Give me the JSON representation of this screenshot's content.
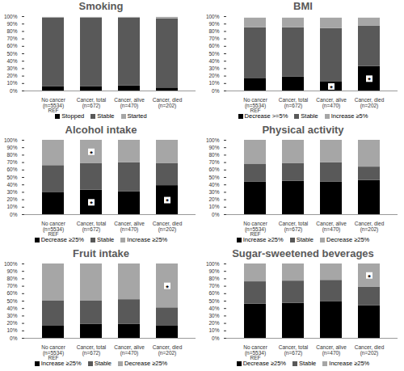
{
  "chart_data": [
    {
      "type": "bar",
      "stacked": true,
      "title": "Smoking",
      "legend": "bottom",
      "categories": [
        "No cancer (n=5534)\nREF",
        "Cancer, total (n=672)",
        "Cancer, alive (n=470)",
        "Cancer, died (n=202)"
      ],
      "series": [
        {
          "name": "Stopped",
          "color": "#000000",
          "values": [
            6,
            6,
            7,
            4
          ]
        },
        {
          "name": "Stable",
          "color": "#595959",
          "values": [
            92,
            92,
            91,
            93
          ]
        },
        {
          "name": "Started",
          "color": "#a6a6a6",
          "values": [
            1,
            1,
            1,
            2
          ]
        }
      ],
      "ylim": [
        0,
        100
      ],
      "yticks": [
        {
          "value": 0,
          "label": "0%"
        },
        {
          "value": 10,
          "label": "10%"
        },
        {
          "value": 20,
          "label": "20%"
        },
        {
          "value": 30,
          "label": "30%"
        },
        {
          "value": 40,
          "label": "40%"
        },
        {
          "value": 50,
          "label": "50%"
        },
        {
          "value": 60,
          "label": "60%"
        },
        {
          "value": 70,
          "label": "70%"
        },
        {
          "value": 80,
          "label": "80%"
        },
        {
          "value": 90,
          "label": "90%"
        },
        {
          "value": 100,
          "label": "100%"
        }
      ],
      "annotations": []
    },
    {
      "type": "bar",
      "stacked": true,
      "title": "BMI",
      "legend": "bottom",
      "categories": [
        "No cancer (n=5534)\nREF",
        "Cancer, total (n=672)",
        "Cancer, alive (n=470)",
        "Cancer, died (n=202)"
      ],
      "series": [
        {
          "name": "Decrease >=5%",
          "color": "#000000",
          "values": [
            17,
            19,
            12,
            33
          ]
        },
        {
          "name": "Stable",
          "color": "#595959",
          "values": [
            68,
            66,
            72,
            54
          ]
        },
        {
          "name": "Increase ≥5%",
          "color": "#a6a6a6",
          "values": [
            13,
            13,
            14,
            11
          ]
        }
      ],
      "ylim": [
        0,
        100
      ],
      "yticks": [
        {
          "value": 0,
          "label": "0%"
        },
        {
          "value": 10,
          "label": "10%"
        },
        {
          "value": 20,
          "label": "20%"
        },
        {
          "value": 30,
          "label": "30%"
        },
        {
          "value": 40,
          "label": "40%"
        },
        {
          "value": 50,
          "label": "50%"
        },
        {
          "value": 60,
          "label": "60%"
        },
        {
          "value": 70,
          "label": "70%"
        },
        {
          "value": 80,
          "label": "80%"
        },
        {
          "value": 90,
          "label": "90%"
        },
        {
          "value": 100,
          "label": "100%"
        }
      ],
      "annotations": [
        {
          "category": "Cancer, alive (n=470)",
          "series": "Decrease >=5%",
          "text": "*"
        },
        {
          "category": "Cancer, died (n=202)",
          "series": "Decrease >=5%",
          "text": "*"
        }
      ]
    },
    {
      "type": "bar",
      "stacked": true,
      "title": "Alcohol intake",
      "legend": "bottom",
      "categories": [
        "No cancer (n=5534)\nREF",
        "Cancer, total (n=672)",
        "Cancer, alive (n=470)",
        "Cancer, died (n=202)"
      ],
      "series": [
        {
          "name": "Decrease ≥25%",
          "color": "#000000",
          "values": [
            30,
            33,
            31,
            39
          ]
        },
        {
          "name": "Stable",
          "color": "#595959",
          "values": [
            36,
            36,
            39,
            30
          ]
        },
        {
          "name": "Increase ≥25%",
          "color": "#a6a6a6",
          "values": [
            34,
            31,
            30,
            31
          ]
        }
      ],
      "ylim": [
        0,
        100
      ],
      "yticks": [
        {
          "value": 0,
          "label": "0%"
        },
        {
          "value": 10,
          "label": "10%"
        },
        {
          "value": 20,
          "label": "20%"
        },
        {
          "value": 30,
          "label": "30%"
        },
        {
          "value": 40,
          "label": "40%"
        },
        {
          "value": 50,
          "label": "50%"
        },
        {
          "value": 60,
          "label": "60%"
        },
        {
          "value": 70,
          "label": "70%"
        },
        {
          "value": 80,
          "label": "80%"
        },
        {
          "value": 90,
          "label": "90%"
        },
        {
          "value": 100,
          "label": "100%"
        }
      ],
      "annotations": [
        {
          "category": "Cancer, total (n=672)",
          "series": "Decrease ≥25%",
          "text": "*"
        },
        {
          "category": "Cancer, total (n=672)",
          "series": "Increase ≥25%",
          "text": "*"
        },
        {
          "category": "Cancer, died (n=202)",
          "series": "Decrease ≥25%",
          "text": "*"
        }
      ]
    },
    {
      "type": "bar",
      "stacked": true,
      "title": "Physical activity",
      "legend": "bottom",
      "categories": [
        "No cancer (n=5534)\nREF",
        "Cancer, total (n=672)",
        "Cancer, alive (n=470)",
        "Cancer, died (n=202)"
      ],
      "series": [
        {
          "name": "Increase ≥25%",
          "color": "#000000",
          "values": [
            44,
            45,
            44,
            46
          ]
        },
        {
          "name": "Stable",
          "color": "#595959",
          "values": [
            24,
            24,
            26,
            18
          ]
        },
        {
          "name": "Decrease ≥25%",
          "color": "#a6a6a6",
          "values": [
            32,
            31,
            30,
            36
          ]
        }
      ],
      "ylim": [
        0,
        100
      ],
      "yticks": [
        {
          "value": 0,
          "label": "0%"
        },
        {
          "value": 10,
          "label": "10%"
        },
        {
          "value": 20,
          "label": "20%"
        },
        {
          "value": 30,
          "label": "30%"
        },
        {
          "value": 40,
          "label": "40%"
        },
        {
          "value": 50,
          "label": "50%"
        },
        {
          "value": 60,
          "label": "60%"
        },
        {
          "value": 70,
          "label": "70%"
        },
        {
          "value": 80,
          "label": "80%"
        },
        {
          "value": 90,
          "label": "90%"
        },
        {
          "value": 100,
          "label": "100%"
        }
      ],
      "annotations": []
    },
    {
      "type": "bar",
      "stacked": true,
      "title": "Fruit intake",
      "legend": "bottom",
      "categories": [
        "No cancer (n=5534)\nREF",
        "Cancer, total (n=672)",
        "Cancer, alive (n=470)",
        "Cancer, died (n=202)"
      ],
      "series": [
        {
          "name": "Increase ≥25%",
          "color": "#000000",
          "values": [
            17,
            19,
            19,
            17
          ]
        },
        {
          "name": "Stable",
          "color": "#595959",
          "values": [
            33,
            31,
            33,
            24
          ]
        },
        {
          "name": "Decrease ≥25%",
          "color": "#a6a6a6",
          "values": [
            50,
            50,
            48,
            59
          ]
        }
      ],
      "ylim": [
        0,
        100
      ],
      "yticks": [
        {
          "value": 0,
          "label": "0%"
        },
        {
          "value": 10,
          "label": "10%"
        },
        {
          "value": 20,
          "label": "20%"
        },
        {
          "value": 30,
          "label": "30%"
        },
        {
          "value": 40,
          "label": "40%"
        },
        {
          "value": 50,
          "label": "50%"
        },
        {
          "value": 60,
          "label": "60%"
        },
        {
          "value": 70,
          "label": "70%"
        },
        {
          "value": 80,
          "label": "80%"
        },
        {
          "value": 90,
          "label": "90%"
        },
        {
          "value": 100,
          "label": "100%"
        }
      ],
      "annotations": [
        {
          "category": "Cancer, died (n=202)",
          "series": "Decrease ≥25%",
          "text": "*"
        }
      ]
    },
    {
      "type": "bar",
      "stacked": true,
      "title": "Sugar-sweetened beverages",
      "legend": "bottom",
      "categories": [
        "No cancer (n=5534)\nREF",
        "Cancer, total (n=672)",
        "Cancer, alive (n=470)",
        "Cancer, died (n=202)"
      ],
      "series": [
        {
          "name": "Decrease ≥25%",
          "color": "#000000",
          "values": [
            46,
            47,
            49,
            44
          ]
        },
        {
          "name": "Stable",
          "color": "#595959",
          "values": [
            30,
            30,
            29,
            25
          ]
        },
        {
          "name": "Increase ≥25%",
          "color": "#a6a6a6",
          "values": [
            24,
            23,
            22,
            31
          ]
        }
      ],
      "ylim": [
        0,
        100
      ],
      "yticks": [
        {
          "value": 0,
          "label": "0%"
        },
        {
          "value": 10,
          "label": "10%"
        },
        {
          "value": 20,
          "label": "20%"
        },
        {
          "value": 30,
          "label": "30%"
        },
        {
          "value": 40,
          "label": "40%"
        },
        {
          "value": 50,
          "label": "50%"
        },
        {
          "value": 60,
          "label": "60%"
        },
        {
          "value": 70,
          "label": "70%"
        },
        {
          "value": 80,
          "label": "80%"
        },
        {
          "value": 90,
          "label": "90%"
        },
        {
          "value": 100,
          "label": "100%"
        }
      ],
      "annotations": [
        {
          "category": "Cancer, died (n=202)",
          "series": "Increase ≥25%",
          "text": "*"
        }
      ]
    }
  ]
}
